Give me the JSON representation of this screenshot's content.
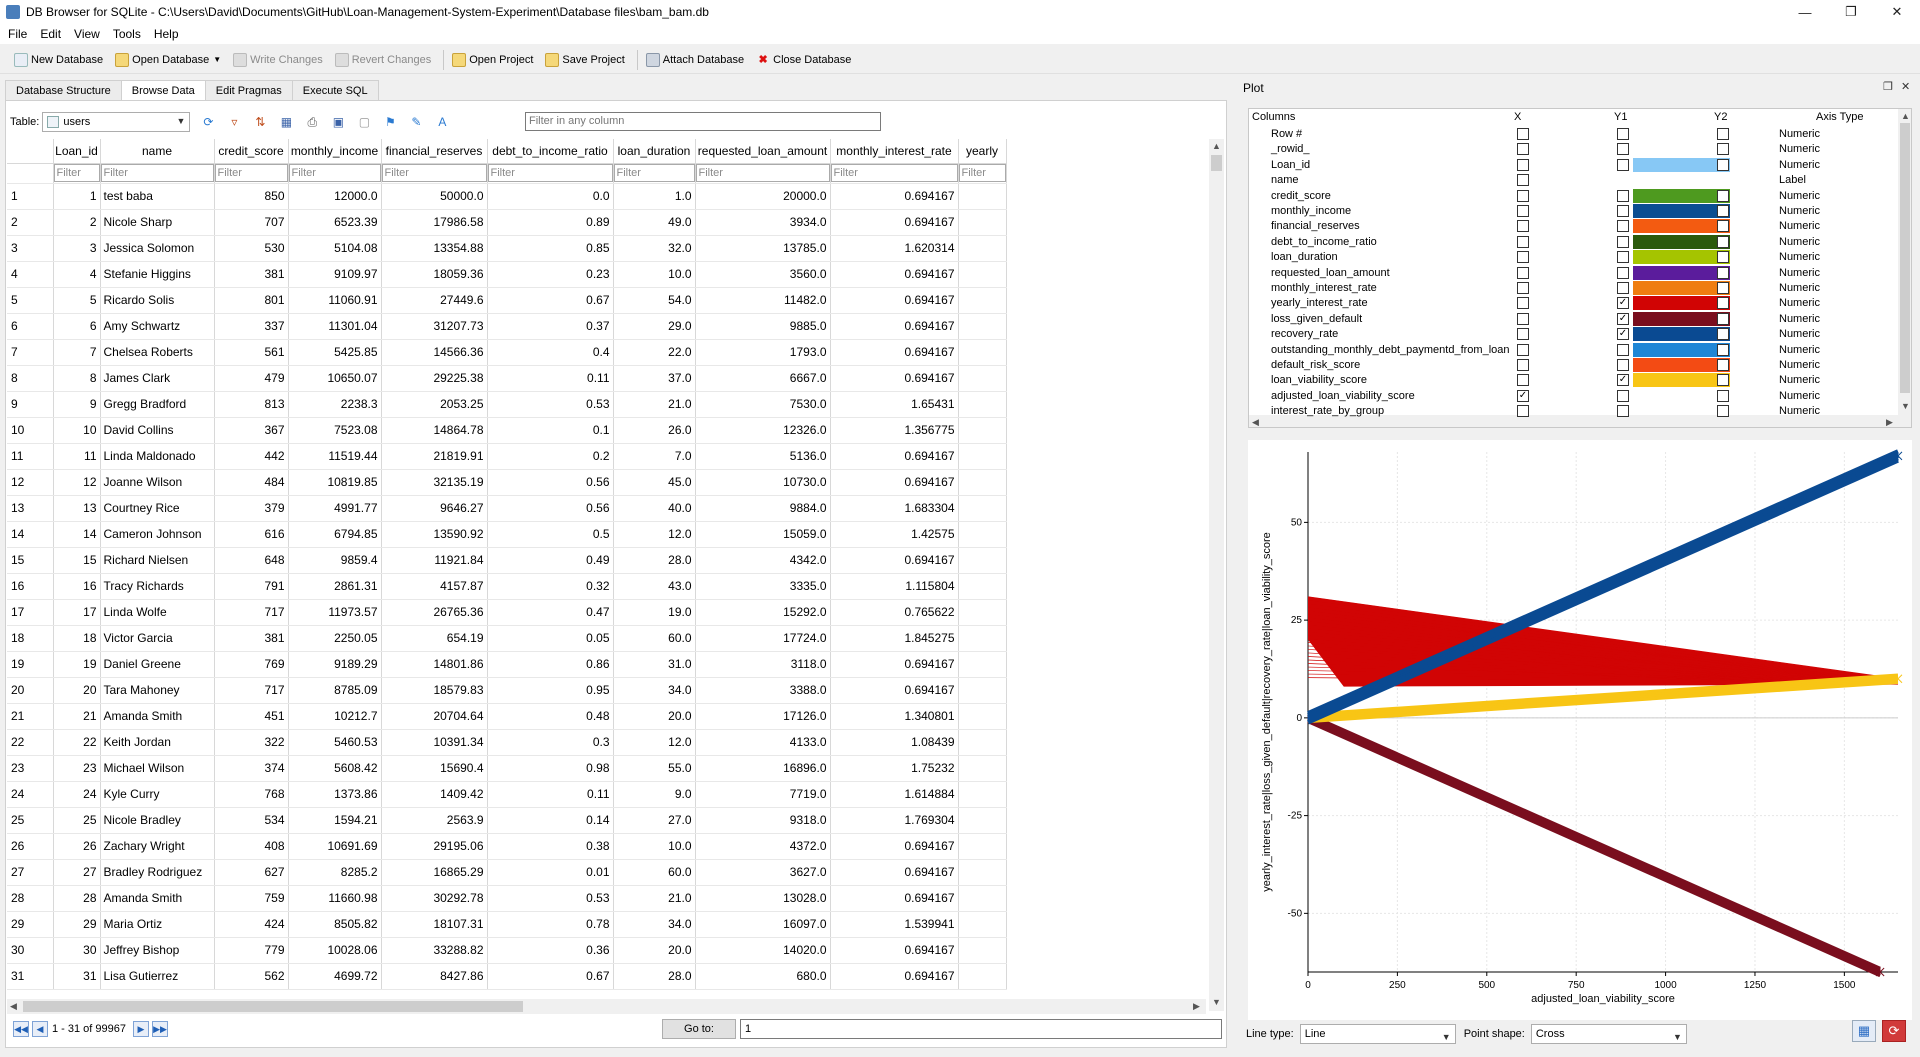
{
  "window": {
    "title": "DB Browser for SQLite - C:\\Users\\David\\Documents\\GitHub\\Loan-Management-System-Experiment\\Database files\\bam_bam.db"
  },
  "menu": [
    "File",
    "Edit",
    "View",
    "Tools",
    "Help"
  ],
  "toolbar": {
    "new_db": "New Database",
    "open_db": "Open Database",
    "write": "Write Changes",
    "revert": "Revert Changes",
    "open_project": "Open Project",
    "save_project": "Save Project",
    "attach": "Attach Database",
    "close": "Close Database"
  },
  "tabs": [
    "Database Structure",
    "Browse Data",
    "Edit Pragmas",
    "Execute SQL"
  ],
  "browse": {
    "table_label": "Table:",
    "table_name": "users",
    "filter_all_placeholder": "Filter in any column",
    "filter_placeholder": "Filter",
    "columns": [
      "Loan_id",
      "name",
      "credit_score",
      "monthly_income",
      "financial_reserves",
      "debt_to_income_ratio",
      "loan_duration",
      "requested_loan_amount",
      "monthly_interest_rate",
      "yearly"
    ],
    "rows": [
      [
        "1",
        "1",
        "test baba",
        "850",
        "12000.0",
        "50000.0",
        "0.0",
        "1.0",
        "20000.0",
        "0.694167"
      ],
      [
        "2",
        "2",
        "Nicole Sharp",
        "707",
        "6523.39",
        "17986.58",
        "0.89",
        "49.0",
        "3934.0",
        "0.694167"
      ],
      [
        "3",
        "3",
        "Jessica Solomon",
        "530",
        "5104.08",
        "13354.88",
        "0.85",
        "32.0",
        "13785.0",
        "1.620314"
      ],
      [
        "4",
        "4",
        "Stefanie Higgins",
        "381",
        "9109.97",
        "18059.36",
        "0.23",
        "10.0",
        "3560.0",
        "0.694167"
      ],
      [
        "5",
        "5",
        "Ricardo Solis",
        "801",
        "11060.91",
        "27449.6",
        "0.67",
        "54.0",
        "11482.0",
        "0.694167"
      ],
      [
        "6",
        "6",
        "Amy Schwartz",
        "337",
        "11301.04",
        "31207.73",
        "0.37",
        "29.0",
        "9885.0",
        "0.694167"
      ],
      [
        "7",
        "7",
        "Chelsea Roberts",
        "561",
        "5425.85",
        "14566.36",
        "0.4",
        "22.0",
        "1793.0",
        "0.694167"
      ],
      [
        "8",
        "8",
        "James Clark",
        "479",
        "10650.07",
        "29225.38",
        "0.11",
        "37.0",
        "6667.0",
        "0.694167"
      ],
      [
        "9",
        "9",
        "Gregg Bradford",
        "813",
        "2238.3",
        "2053.25",
        "0.53",
        "21.0",
        "7530.0",
        "1.65431"
      ],
      [
        "10",
        "10",
        "David Collins",
        "367",
        "7523.08",
        "14864.78",
        "0.1",
        "26.0",
        "12326.0",
        "1.356775"
      ],
      [
        "11",
        "11",
        "Linda Maldonado",
        "442",
        "11519.44",
        "21819.91",
        "0.2",
        "7.0",
        "5136.0",
        "0.694167"
      ],
      [
        "12",
        "12",
        "Joanne Wilson",
        "484",
        "10819.85",
        "32135.19",
        "0.56",
        "45.0",
        "10730.0",
        "0.694167"
      ],
      [
        "13",
        "13",
        "Courtney Rice",
        "379",
        "4991.77",
        "9646.27",
        "0.56",
        "40.0",
        "9884.0",
        "1.683304"
      ],
      [
        "14",
        "14",
        "Cameron Johnson",
        "616",
        "6794.85",
        "13590.92",
        "0.5",
        "12.0",
        "15059.0",
        "1.42575"
      ],
      [
        "15",
        "15",
        "Richard Nielsen",
        "648",
        "9859.4",
        "11921.84",
        "0.49",
        "28.0",
        "4342.0",
        "0.694167"
      ],
      [
        "16",
        "16",
        "Tracy Richards",
        "791",
        "2861.31",
        "4157.87",
        "0.32",
        "43.0",
        "3335.0",
        "1.115804"
      ],
      [
        "17",
        "17",
        "Linda Wolfe",
        "717",
        "11973.57",
        "26765.36",
        "0.47",
        "19.0",
        "15292.0",
        "0.765622"
      ],
      [
        "18",
        "18",
        "Victor Garcia",
        "381",
        "2250.05",
        "654.19",
        "0.05",
        "60.0",
        "17724.0",
        "1.845275"
      ],
      [
        "19",
        "19",
        "Daniel Greene",
        "769",
        "9189.29",
        "14801.86",
        "0.86",
        "31.0",
        "3118.0",
        "0.694167"
      ],
      [
        "20",
        "20",
        "Tara Mahoney",
        "717",
        "8785.09",
        "18579.83",
        "0.95",
        "34.0",
        "3388.0",
        "0.694167"
      ],
      [
        "21",
        "21",
        "Amanda Smith",
        "451",
        "10212.7",
        "20704.64",
        "0.48",
        "20.0",
        "17126.0",
        "1.340801"
      ],
      [
        "22",
        "22",
        "Keith Jordan",
        "322",
        "5460.53",
        "10391.34",
        "0.3",
        "12.0",
        "4133.0",
        "1.08439"
      ],
      [
        "23",
        "23",
        "Michael Wilson",
        "374",
        "5608.42",
        "15690.4",
        "0.98",
        "55.0",
        "16896.0",
        "1.75232"
      ],
      [
        "24",
        "24",
        "Kyle Curry",
        "768",
        "1373.86",
        "1409.42",
        "0.11",
        "9.0",
        "7719.0",
        "1.614884"
      ],
      [
        "25",
        "25",
        "Nicole Bradley",
        "534",
        "1594.21",
        "2563.9",
        "0.14",
        "27.0",
        "9318.0",
        "1.769304"
      ],
      [
        "26",
        "26",
        "Zachary Wright",
        "408",
        "10691.69",
        "29195.06",
        "0.38",
        "10.0",
        "4372.0",
        "0.694167"
      ],
      [
        "27",
        "27",
        "Bradley Rodriguez",
        "627",
        "8285.2",
        "16865.29",
        "0.01",
        "60.0",
        "3627.0",
        "0.694167"
      ],
      [
        "28",
        "28",
        "Amanda Smith",
        "759",
        "11660.98",
        "30292.78",
        "0.53",
        "21.0",
        "13028.0",
        "0.694167"
      ],
      [
        "29",
        "29",
        "Maria Ortiz",
        "424",
        "8505.82",
        "18107.31",
        "0.78",
        "34.0",
        "16097.0",
        "1.539941"
      ],
      [
        "30",
        "30",
        "Jeffrey Bishop",
        "779",
        "10028.06",
        "33288.82",
        "0.36",
        "20.0",
        "14020.0",
        "0.694167"
      ],
      [
        "31",
        "31",
        "Lisa Gutierrez",
        "562",
        "4699.72",
        "8427.86",
        "0.67",
        "28.0",
        "680.0",
        "0.694167"
      ]
    ],
    "record_count": "1 - 31 of 99967",
    "goto_label": "Go to:",
    "goto_value": "1"
  },
  "plot": {
    "title": "Plot",
    "headers": {
      "columns": "Columns",
      "x": "X",
      "y1": "Y1",
      "y2": "Y2",
      "axis_type": "Axis Type"
    },
    "columns": [
      {
        "name": "Row #",
        "type": "Numeric",
        "x": false,
        "y1": false,
        "y2": false,
        "color": null
      },
      {
        "name": "_rowid_",
        "type": "Numeric",
        "x": false,
        "y1": false,
        "y2": false,
        "color": null
      },
      {
        "name": "Loan_id",
        "type": "Numeric",
        "x": false,
        "y1": false,
        "y2": false,
        "color": "#87c8f5"
      },
      {
        "name": "name",
        "type": "Label",
        "x": false,
        "y1": null,
        "y2": null,
        "color": null
      },
      {
        "name": "credit_score",
        "type": "Numeric",
        "x": false,
        "y1": false,
        "y2": false,
        "color": "#4e9a1f"
      },
      {
        "name": "monthly_income",
        "type": "Numeric",
        "x": false,
        "y1": false,
        "y2": false,
        "color": "#0b4e92"
      },
      {
        "name": "financial_reserves",
        "type": "Numeric",
        "x": false,
        "y1": false,
        "y2": false,
        "color": "#f35b11"
      },
      {
        "name": "debt_to_income_ratio",
        "type": "Numeric",
        "x": false,
        "y1": false,
        "y2": false,
        "color": "#2b5a0c"
      },
      {
        "name": "loan_duration",
        "type": "Numeric",
        "x": false,
        "y1": false,
        "y2": false,
        "color": "#a5c400"
      },
      {
        "name": "requested_loan_amount",
        "type": "Numeric",
        "x": false,
        "y1": false,
        "y2": false,
        "color": "#5b1c9c"
      },
      {
        "name": "monthly_interest_rate",
        "type": "Numeric",
        "x": false,
        "y1": false,
        "y2": false,
        "color": "#ef7d10"
      },
      {
        "name": "yearly_interest_rate",
        "type": "Numeric",
        "x": false,
        "y1": true,
        "y2": false,
        "color": "#d10404"
      },
      {
        "name": "loss_given_default",
        "type": "Numeric",
        "x": false,
        "y1": true,
        "y2": false,
        "color": "#7a0e1e"
      },
      {
        "name": "recovery_rate",
        "type": "Numeric",
        "x": false,
        "y1": true,
        "y2": false,
        "color": "#0a4a92"
      },
      {
        "name": "outstanding_monthly_debt_paymentd_from_loan",
        "type": "Numeric",
        "x": false,
        "y1": false,
        "y2": false,
        "color": "#1f86d6"
      },
      {
        "name": "default_risk_score",
        "type": "Numeric",
        "x": false,
        "y1": false,
        "y2": false,
        "color": "#f34b14"
      },
      {
        "name": "loan_viability_score",
        "type": "Numeric",
        "x": false,
        "y1": true,
        "y2": false,
        "color": "#f8c515"
      },
      {
        "name": "adjusted_loan_viability_score",
        "type": "Numeric",
        "x": true,
        "y1": false,
        "y2": false,
        "color": null
      },
      {
        "name": "interest_rate_by_group",
        "type": "Numeric",
        "x": false,
        "y1": false,
        "y2": false,
        "color": null
      }
    ],
    "line_type_label": "Line type:",
    "line_type": "Line",
    "point_shape_label": "Point shape:",
    "point_shape": "Cross"
  },
  "chart_data": {
    "type": "line",
    "xlabel": "adjusted_loan_viability_score",
    "ylabel": "yearly_interest_rate|loss_given_default|recovery_rate|loan_viability_score",
    "xlim": [
      0,
      1650
    ],
    "ylim": [
      -65,
      68
    ],
    "xticks": [
      0,
      250,
      500,
      750,
      1000,
      1250,
      1500
    ],
    "yticks": [
      -50,
      -25,
      0,
      25,
      50
    ],
    "grid": true,
    "series": [
      {
        "name": "yearly_interest_rate",
        "color": "#d10404",
        "x": [
          0,
          100,
          1650
        ],
        "y": [
          31,
          8,
          10
        ]
      },
      {
        "name": "loss_given_default",
        "color": "#7a0e1e",
        "x": [
          0,
          1600
        ],
        "y": [
          0,
          -65
        ]
      },
      {
        "name": "recovery_rate",
        "color": "#0a4a92",
        "x": [
          0,
          1650
        ],
        "y": [
          0,
          67
        ]
      },
      {
        "name": "loan_viability_score",
        "color": "#f8c515",
        "x": [
          0,
          1650
        ],
        "y": [
          0,
          10
        ]
      }
    ]
  }
}
